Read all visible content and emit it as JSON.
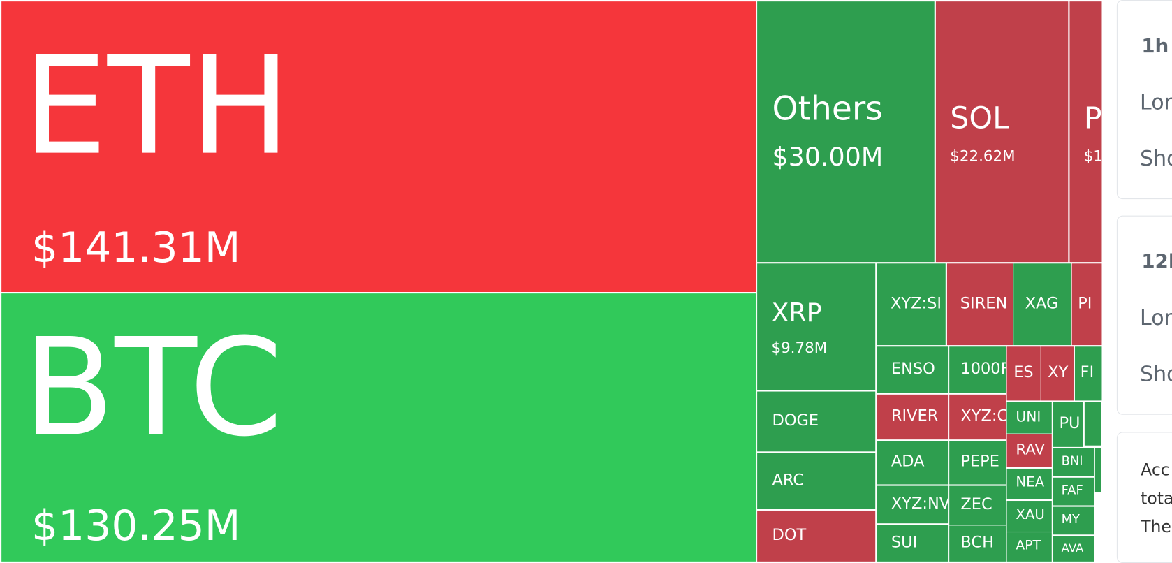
{
  "tiles": [
    {
      "label": "ETH",
      "value": "$141.31M"
    },
    {
      "label": "BTC",
      "value": "$130.25M"
    },
    {
      "label": "Others",
      "value": "$30.00M"
    },
    {
      "label": "SOL",
      "value": "$22.62M"
    },
    {
      "label": "P",
      "value": "$1"
    },
    {
      "label": "XRP",
      "value": "$9.78M"
    },
    {
      "label": "XYZ:SI"
    },
    {
      "label": "SIREN"
    },
    {
      "label": "XAG"
    },
    {
      "label": "PI"
    },
    {
      "label": "ENSO"
    },
    {
      "label": "1000F"
    },
    {
      "label": "ES"
    },
    {
      "label": "XY"
    },
    {
      "label": "FI"
    },
    {
      "label": "DOGE"
    },
    {
      "label": "RIVER"
    },
    {
      "label": "XYZ:C"
    },
    {
      "label": "UNI"
    },
    {
      "label": "PU"
    },
    {
      "label": "ARC"
    },
    {
      "label": "ADA"
    },
    {
      "label": "PEPE"
    },
    {
      "label": "RAV"
    },
    {
      "label": "BNI"
    },
    {
      "label": "NEA"
    },
    {
      "label": "FAF"
    },
    {
      "label": "ZEC"
    },
    {
      "label": "XYZ:NV"
    },
    {
      "label": "DOT"
    },
    {
      "label": "XAU"
    },
    {
      "label": "MY"
    },
    {
      "label": "SUI"
    },
    {
      "label": "BCH"
    },
    {
      "label": "APT"
    },
    {
      "label": "AVA"
    }
  ],
  "cards": [
    {
      "title": "1h",
      "rows": [
        "Lon",
        "Sho"
      ]
    },
    {
      "title": "12h",
      "rows": [
        "Lon",
        "Sho"
      ]
    }
  ],
  "note": [
    "Acc",
    "tota",
    "The"
  ]
}
